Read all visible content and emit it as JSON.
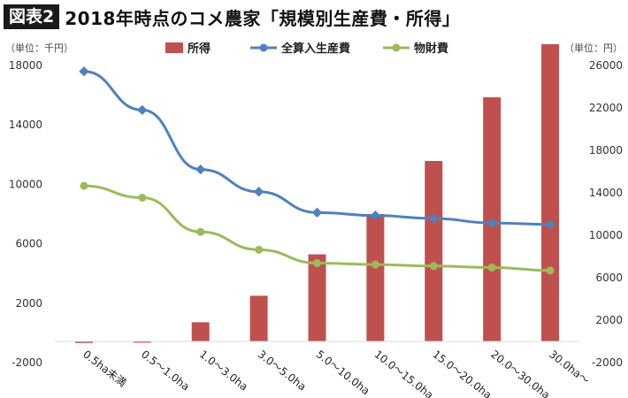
{
  "header": {
    "badge": "図表2",
    "title": "2018年時点のコメ農家「規模別生産費・所得」"
  },
  "colors": {
    "income": "#c0504d",
    "total_cost": "#4f81bd",
    "material_cost": "#9bbb59"
  },
  "chart_data": {
    "type": "bar+line",
    "categories": [
      "0.5ha未満",
      "0.5～1.0ha",
      "1.0～3.0ha",
      "3.0～5.0ha",
      "5.0～10.0ha",
      "10.0～15.0ha",
      "15.0～20.0ha",
      "20.0～30.0ha",
      "30.0ha～"
    ],
    "left_axis": {
      "unit_label": "（単位：千円）",
      "min": -2000,
      "max": 18000,
      "ticks": [
        -2000,
        2000,
        6000,
        10000,
        14000,
        18000
      ]
    },
    "right_axis": {
      "unit_label": "（単位：円）",
      "min": -2000,
      "max": 26000,
      "ticks": [
        -2000,
        2000,
        6000,
        10000,
        14000,
        18000,
        22000,
        26000
      ]
    },
    "series": [
      {
        "name": "所得",
        "type": "bar",
        "axis": "right",
        "values": [
          -150,
          -50,
          1800,
          4300,
          8200,
          12000,
          17000,
          23000,
          28000
        ]
      },
      {
        "name": "全算入生産費",
        "type": "line",
        "axis": "left",
        "values": [
          17600,
          15000,
          11000,
          9500,
          8100,
          7900,
          7700,
          7400,
          7300
        ]
      },
      {
        "name": "物財費",
        "type": "line",
        "axis": "left",
        "values": [
          9900,
          9100,
          6800,
          5600,
          4700,
          4600,
          4500,
          4400,
          4200
        ]
      }
    ],
    "legend_position": "top-center",
    "grid": false
  }
}
